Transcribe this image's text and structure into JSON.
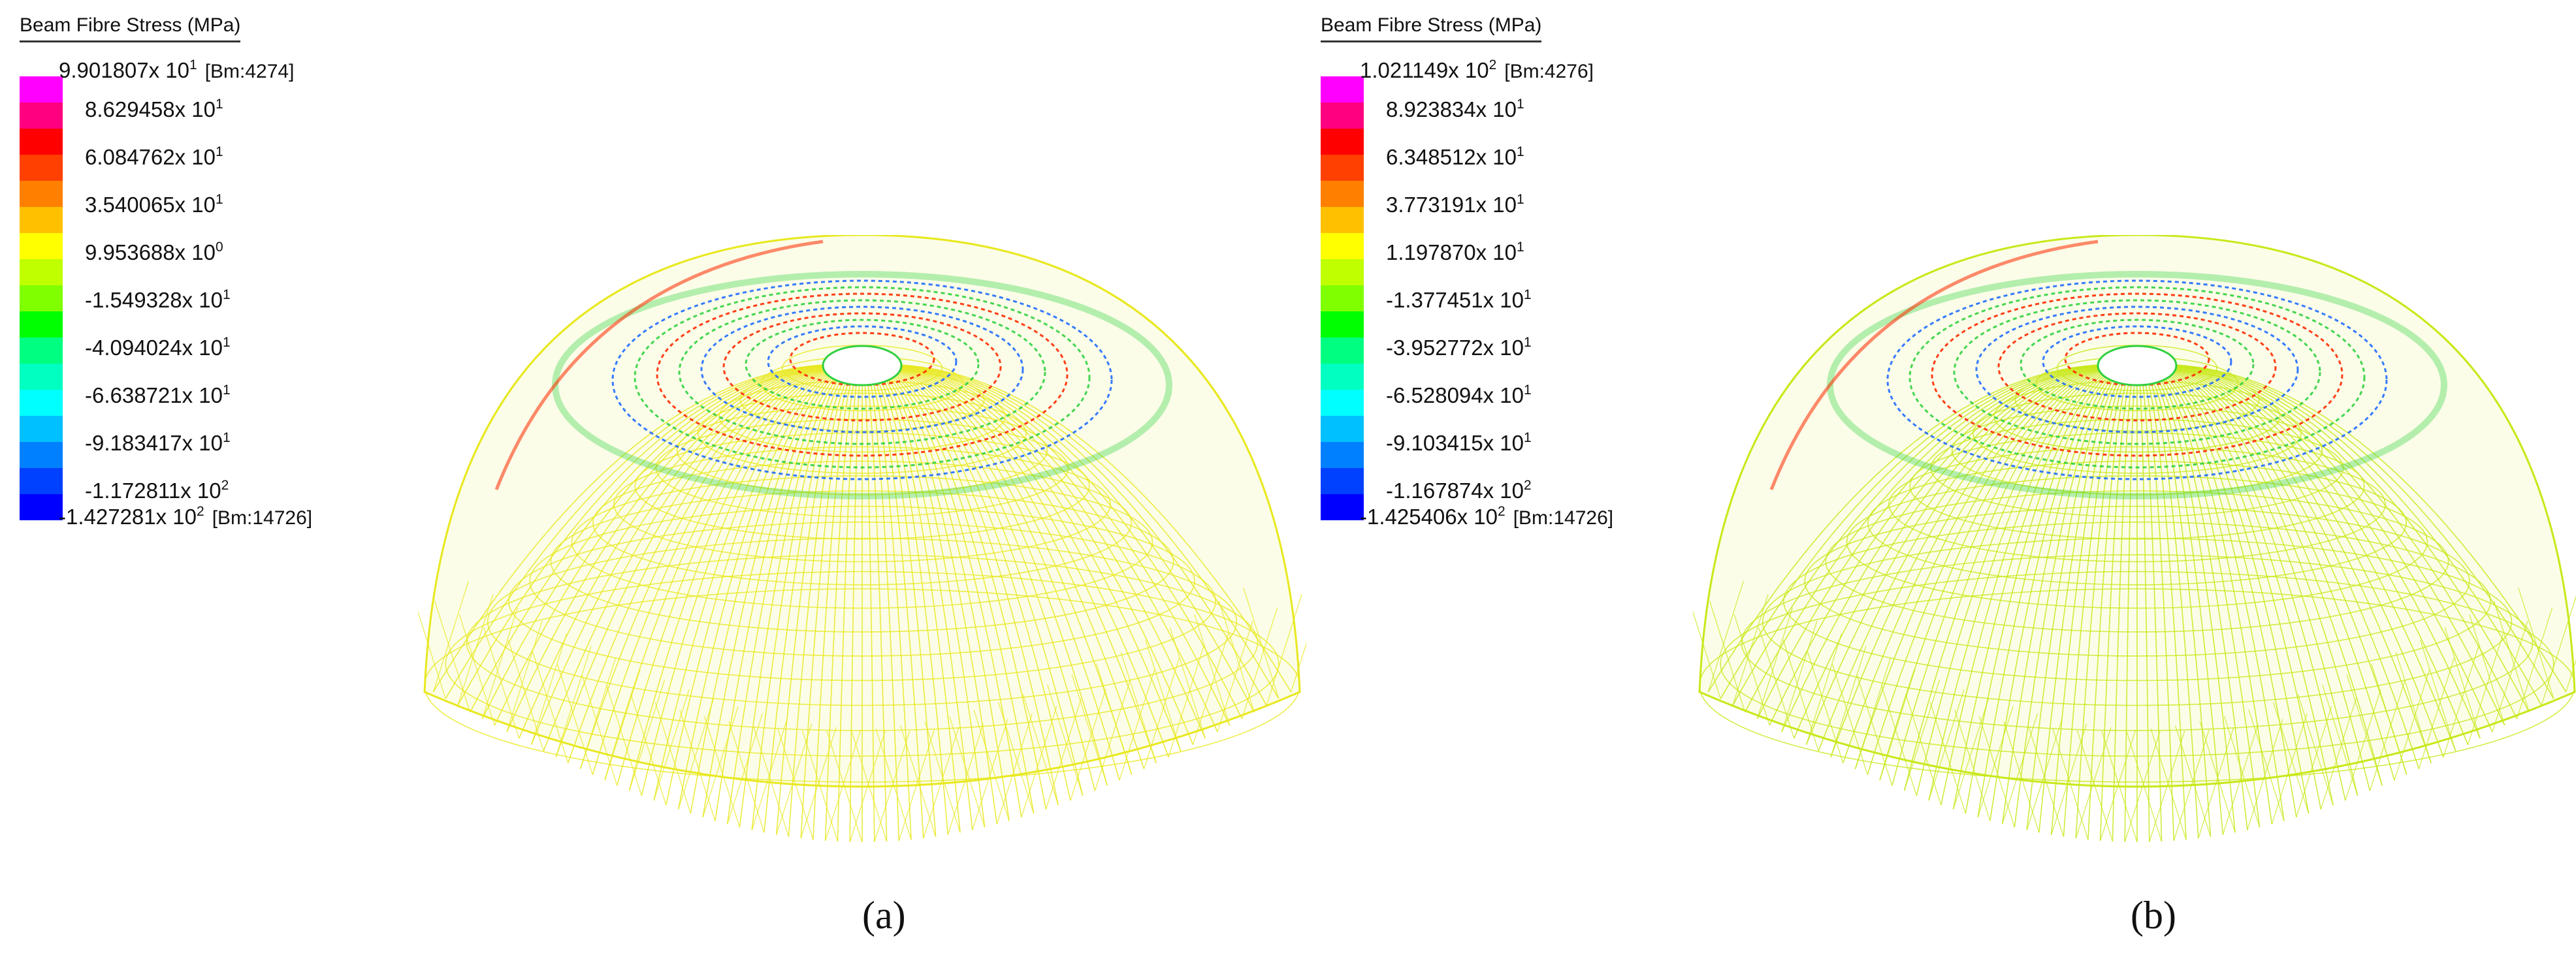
{
  "panels": [
    {
      "legend_title": "Beam Fibre Stress  (MPa)",
      "max": {
        "mantissa": "9.901807",
        "exp": "1",
        "tag": "[Bm:4274]"
      },
      "min": {
        "mantissa": "-1.427281",
        "exp": "2",
        "tag": "[Bm:14726]"
      },
      "ticks": [
        {
          "mantissa": "8.629458",
          "exp": "1"
        },
        {
          "mantissa": "6.084762",
          "exp": "1"
        },
        {
          "mantissa": "3.540065",
          "exp": "1"
        },
        {
          "mantissa": "9.953688",
          "exp": "0"
        },
        {
          "mantissa": "-1.549328",
          "exp": "1"
        },
        {
          "mantissa": "-4.094024",
          "exp": "1"
        },
        {
          "mantissa": "-6.638721",
          "exp": "1"
        },
        {
          "mantissa": "-9.183417",
          "exp": "1"
        },
        {
          "mantissa": "-1.172811",
          "exp": "2"
        }
      ],
      "caption": "(a)"
    },
    {
      "legend_title": "Beam Fibre Stress  (MPa)",
      "max": {
        "mantissa": "1.021149",
        "exp": "2",
        "tag": "[Bm:4276]"
      },
      "min": {
        "mantissa": "-1.425406",
        "exp": "2",
        "tag": "[Bm:14726]"
      },
      "ticks": [
        {
          "mantissa": "8.923834",
          "exp": "1"
        },
        {
          "mantissa": "6.348512",
          "exp": "1"
        },
        {
          "mantissa": "3.773191",
          "exp": "1"
        },
        {
          "mantissa": "1.197870",
          "exp": "1"
        },
        {
          "mantissa": "-1.377451",
          "exp": "1"
        },
        {
          "mantissa": "-3.952772",
          "exp": "1"
        },
        {
          "mantissa": "-6.528094",
          "exp": "1"
        },
        {
          "mantissa": "-9.103415",
          "exp": "1"
        },
        {
          "mantissa": "-1.167874",
          "exp": "2"
        }
      ],
      "caption": "(b)"
    }
  ],
  "colorbar_colors": [
    "#ff00ff",
    "#ff0080",
    "#ff0000",
    "#ff4000",
    "#ff8000",
    "#ffc000",
    "#ffff00",
    "#c0ff00",
    "#80ff00",
    "#00ff00",
    "#00ff80",
    "#00ffc0",
    "#00ffff",
    "#00c0ff",
    "#0080ff",
    "#0040ff",
    "#0000ff"
  ],
  "colors": {
    "mesh": "#c9e81a",
    "mesh_alt": "#e8e820",
    "high": "#ff2a00",
    "low": "#1f6cff",
    "mid": "#30d040"
  }
}
